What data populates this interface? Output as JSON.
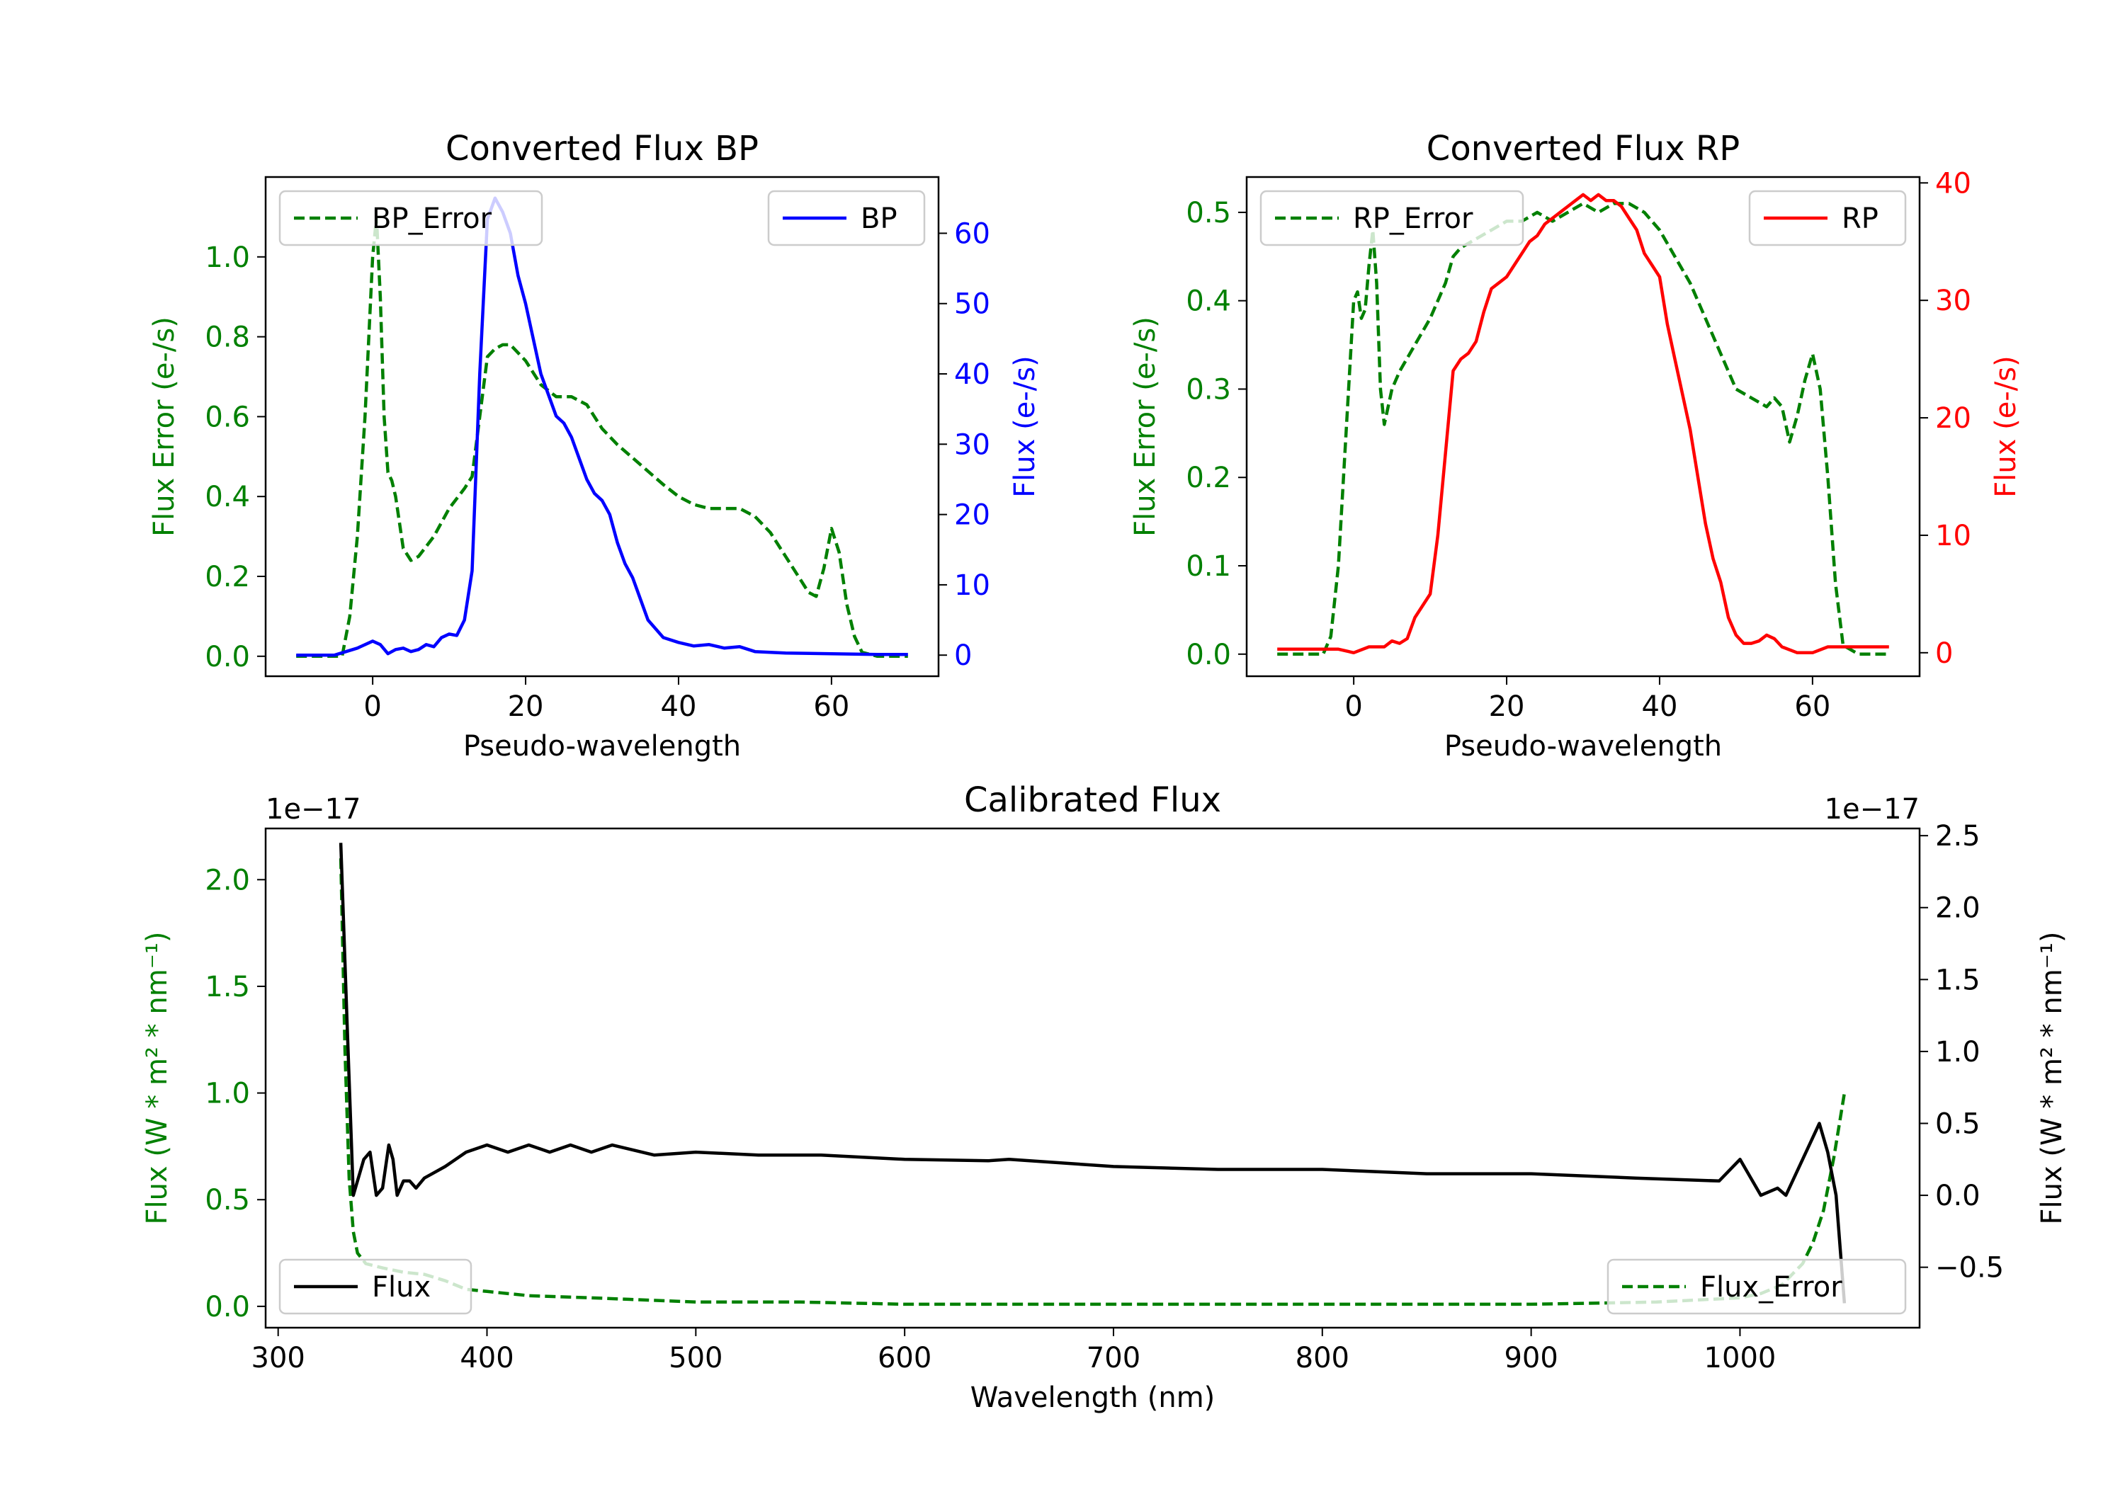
{
  "chart_data": [
    {
      "id": "bp",
      "type": "line",
      "title": "Converted Flux BP",
      "xlabel": "Pseudo-wavelength",
      "xlim": [
        -14,
        74
      ],
      "xticks": [
        0,
        20,
        40,
        60
      ],
      "left_axis": {
        "label": "Flux Error (e-/s)",
        "color": "#008000",
        "ylim": [
          -0.05,
          1.2
        ],
        "ticks": [
          0.0,
          0.2,
          0.4,
          0.6,
          0.8,
          1.0
        ],
        "tick_labels": [
          "0.0",
          "0.2",
          "0.4",
          "0.6",
          "0.8",
          "1.0"
        ]
      },
      "right_axis": {
        "label": "Flux (e-/s)",
        "color": "#0000ff",
        "ylim": [
          -3,
          68
        ],
        "ticks": [
          0,
          10,
          20,
          30,
          40,
          50,
          60
        ],
        "tick_labels": [
          "0",
          "10",
          "20",
          "30",
          "40",
          "50",
          "60"
        ]
      },
      "series": [
        {
          "name": "BP_Error",
          "axis": "left",
          "color": "#008000",
          "dash": true,
          "x": [
            -10,
            -4,
            -3,
            -2,
            -1,
            0,
            0.5,
            1,
            1.5,
            2,
            2.5,
            3,
            4,
            5,
            6,
            8,
            10,
            12,
            13,
            14,
            15,
            16,
            17,
            18,
            20,
            22,
            24,
            26,
            28,
            30,
            32,
            35,
            38,
            40,
            42,
            44,
            46,
            48,
            50,
            52,
            54,
            56,
            57,
            58,
            59,
            60,
            61,
            62,
            63,
            64,
            66,
            70
          ],
          "values": [
            0.0,
            0.0,
            0.1,
            0.3,
            0.6,
            1.0,
            1.1,
            0.9,
            0.6,
            0.46,
            0.44,
            0.4,
            0.27,
            0.24,
            0.25,
            0.3,
            0.37,
            0.42,
            0.45,
            0.6,
            0.75,
            0.77,
            0.78,
            0.78,
            0.74,
            0.68,
            0.65,
            0.65,
            0.63,
            0.57,
            0.53,
            0.48,
            0.43,
            0.4,
            0.38,
            0.37,
            0.37,
            0.37,
            0.35,
            0.31,
            0.25,
            0.19,
            0.16,
            0.15,
            0.22,
            0.32,
            0.26,
            0.13,
            0.05,
            0.01,
            0.0,
            0.0
          ]
        },
        {
          "name": "BP",
          "axis": "right",
          "color": "#0000ff",
          "dash": false,
          "x": [
            -10,
            -5,
            -2,
            0,
            1,
            2,
            3,
            4,
            5,
            6,
            7,
            8,
            9,
            10,
            11,
            12,
            13,
            14,
            15,
            16,
            17,
            18,
            19,
            20,
            21,
            22,
            23,
            24,
            25,
            26,
            27,
            28,
            29,
            30,
            31,
            32,
            33,
            34,
            35,
            36,
            38,
            40,
            42,
            44,
            46,
            48,
            50,
            54,
            60,
            66,
            70
          ],
          "values": [
            0,
            0,
            1,
            2,
            1.5,
            0.2,
            0.8,
            1,
            0.5,
            0.8,
            1.5,
            1.2,
            2.5,
            3,
            2.8,
            5,
            12,
            40,
            62,
            65,
            63,
            60,
            54,
            50,
            45,
            40,
            37,
            34,
            33,
            31,
            28,
            25,
            23,
            22,
            20,
            16,
            13,
            11,
            8,
            5,
            2.5,
            1.8,
            1.3,
            1.5,
            1,
            1.2,
            0.5,
            0.3,
            0.2,
            0.1,
            0.1
          ]
        }
      ],
      "legend": [
        {
          "label": "BP_Error",
          "placement": "upper-left"
        },
        {
          "label": "BP",
          "placement": "upper-right"
        }
      ]
    },
    {
      "id": "rp",
      "type": "line",
      "title": "Converted Flux RP",
      "xlabel": "Pseudo-wavelength",
      "xlim": [
        -14,
        74
      ],
      "xticks": [
        0,
        20,
        40,
        60
      ],
      "left_axis": {
        "label": "Flux Error (e-/s)",
        "color": "#008000",
        "ylim": [
          -0.025,
          0.54
        ],
        "ticks": [
          0.0,
          0.1,
          0.2,
          0.3,
          0.4,
          0.5
        ],
        "tick_labels": [
          "0.0",
          "0.1",
          "0.2",
          "0.3",
          "0.4",
          "0.5"
        ]
      },
      "right_axis": {
        "label": "Flux (e-/s)",
        "color": "#ff0000",
        "ylim": [
          -2,
          40.5
        ],
        "ticks": [
          0,
          10,
          20,
          30,
          40
        ],
        "tick_labels": [
          "0",
          "10",
          "20",
          "30",
          "40"
        ]
      },
      "series": [
        {
          "name": "RP_Error",
          "axis": "left",
          "color": "#008000",
          "dash": true,
          "x": [
            -10,
            -5,
            -4,
            -3,
            -2,
            -1,
            0,
            0.5,
            1,
            1.5,
            2,
            2.5,
            3,
            3.5,
            4,
            5,
            6,
            8,
            10,
            12,
            13,
            14,
            16,
            18,
            20,
            22,
            24,
            26,
            28,
            30,
            32,
            34,
            36,
            38,
            40,
            42,
            44,
            46,
            48,
            50,
            52,
            54,
            55,
            56,
            57,
            58,
            59,
            60,
            61,
            62,
            63,
            64,
            66,
            70
          ],
          "values": [
            0.0,
            0.0,
            0.0,
            0.02,
            0.1,
            0.25,
            0.4,
            0.41,
            0.38,
            0.39,
            0.44,
            0.48,
            0.42,
            0.3,
            0.26,
            0.3,
            0.32,
            0.35,
            0.38,
            0.42,
            0.45,
            0.46,
            0.47,
            0.48,
            0.49,
            0.49,
            0.5,
            0.49,
            0.5,
            0.51,
            0.5,
            0.51,
            0.51,
            0.5,
            0.48,
            0.45,
            0.42,
            0.38,
            0.34,
            0.3,
            0.29,
            0.28,
            0.29,
            0.28,
            0.24,
            0.27,
            0.31,
            0.34,
            0.3,
            0.2,
            0.08,
            0.01,
            0.0,
            0.0
          ]
        },
        {
          "name": "RP",
          "axis": "right",
          "color": "#ff0000",
          "dash": false,
          "x": [
            -10,
            -5,
            -2,
            0,
            2,
            4,
            5,
            6,
            7,
            8,
            9,
            10,
            11,
            12,
            13,
            14,
            15,
            16,
            17,
            18,
            19,
            20,
            21,
            22,
            23,
            24,
            25,
            26,
            27,
            28,
            29,
            30,
            31,
            32,
            33,
            34,
            35,
            36,
            37,
            38,
            39,
            40,
            41,
            42,
            43,
            44,
            45,
            46,
            47,
            48,
            49,
            50,
            51,
            52,
            53,
            54,
            55,
            56,
            58,
            60,
            62,
            66,
            70
          ],
          "values": [
            0.3,
            0.3,
            0.3,
            0,
            0.5,
            0.5,
            1,
            0.8,
            1.2,
            3,
            4,
            5,
            10,
            17,
            24,
            25,
            25.5,
            26.5,
            29,
            31,
            31.5,
            32,
            33,
            34,
            35,
            35.5,
            36.5,
            37,
            37.5,
            38,
            38.5,
            39,
            38.5,
            39,
            38.5,
            38.5,
            38,
            37,
            36,
            34,
            33,
            32,
            28,
            25,
            22,
            19,
            15,
            11,
            8,
            6,
            3,
            1.5,
            0.8,
            0.8,
            1,
            1.5,
            1.2,
            0.5,
            0,
            0,
            0.5,
            0.5,
            0.5
          ]
        }
      ],
      "legend": [
        {
          "label": "RP_Error",
          "placement": "upper-left"
        },
        {
          "label": "RP",
          "placement": "upper-right"
        }
      ]
    },
    {
      "id": "cal",
      "type": "line",
      "title": "Calibrated Flux",
      "xlabel": "Wavelength (nm)",
      "xlim": [
        294,
        1086
      ],
      "xticks": [
        300,
        400,
        500,
        600,
        700,
        800,
        900,
        1000
      ],
      "left_axis": {
        "label": "Flux (W * m² * nm⁻¹)",
        "color": "#008000",
        "offset_text": "1e−17",
        "ylim": [
          -0.1,
          2.24
        ],
        "ticks": [
          0.0,
          0.5,
          1.0,
          1.5,
          2.0
        ],
        "tick_labels": [
          "0.0",
          "0.5",
          "1.0",
          "1.5",
          "2.0"
        ]
      },
      "right_axis": {
        "label": "Flux (W * m² * nm⁻¹)",
        "color": "#000000",
        "offset_text": "1e−17",
        "ylim": [
          -0.92,
          2.55
        ],
        "ticks": [
          -0.5,
          0.0,
          0.5,
          1.0,
          1.5,
          2.0,
          2.5
        ],
        "tick_labels": [
          "−0.5",
          "0.0",
          "0.5",
          "1.0",
          "1.5",
          "2.0",
          "2.5"
        ]
      },
      "series": [
        {
          "name": "Flux_Error",
          "axis": "left",
          "color": "#008000",
          "dash": true,
          "x": [
            330,
            332,
            334,
            336,
            338,
            342,
            350,
            360,
            370,
            380,
            390,
            400,
            420,
            450,
            500,
            550,
            600,
            640,
            700,
            800,
            900,
            960,
            1000,
            1010,
            1020,
            1030,
            1035,
            1040,
            1045,
            1050
          ],
          "values": [
            2.1,
            1.2,
            0.6,
            0.35,
            0.25,
            0.2,
            0.18,
            0.16,
            0.15,
            0.12,
            0.08,
            0.07,
            0.05,
            0.04,
            0.02,
            0.02,
            0.01,
            0.01,
            0.01,
            0.01,
            0.01,
            0.02,
            0.04,
            0.06,
            0.1,
            0.2,
            0.3,
            0.45,
            0.7,
            1.0
          ]
        },
        {
          "name": "Flux",
          "axis": "right",
          "color": "#000000",
          "dash": false,
          "x": [
            330,
            333,
            336,
            338,
            341,
            344,
            347,
            350,
            353,
            355,
            357,
            360,
            363,
            366,
            370,
            380,
            390,
            400,
            410,
            420,
            430,
            440,
            450,
            460,
            480,
            500,
            530,
            560,
            600,
            640,
            650,
            700,
            750,
            800,
            850,
            900,
            950,
            990,
            1000,
            1010,
            1018,
            1022,
            1030,
            1038,
            1042,
            1046,
            1050
          ],
          "values": [
            2.45,
            1.2,
            0.0,
            0.1,
            0.25,
            0.3,
            0.0,
            0.05,
            0.35,
            0.25,
            0.0,
            0.1,
            0.1,
            0.05,
            0.12,
            0.2,
            0.3,
            0.35,
            0.3,
            0.35,
            0.3,
            0.35,
            0.3,
            0.35,
            0.28,
            0.3,
            0.28,
            0.28,
            0.25,
            0.24,
            0.25,
            0.2,
            0.18,
            0.18,
            0.15,
            0.15,
            0.12,
            0.1,
            0.25,
            0.0,
            0.05,
            0.0,
            0.25,
            0.5,
            0.3,
            0.0,
            -0.75
          ]
        }
      ],
      "legend": [
        {
          "label": "Flux",
          "placement": "lower-left"
        },
        {
          "label": "Flux_Error",
          "placement": "lower-right"
        }
      ]
    }
  ]
}
